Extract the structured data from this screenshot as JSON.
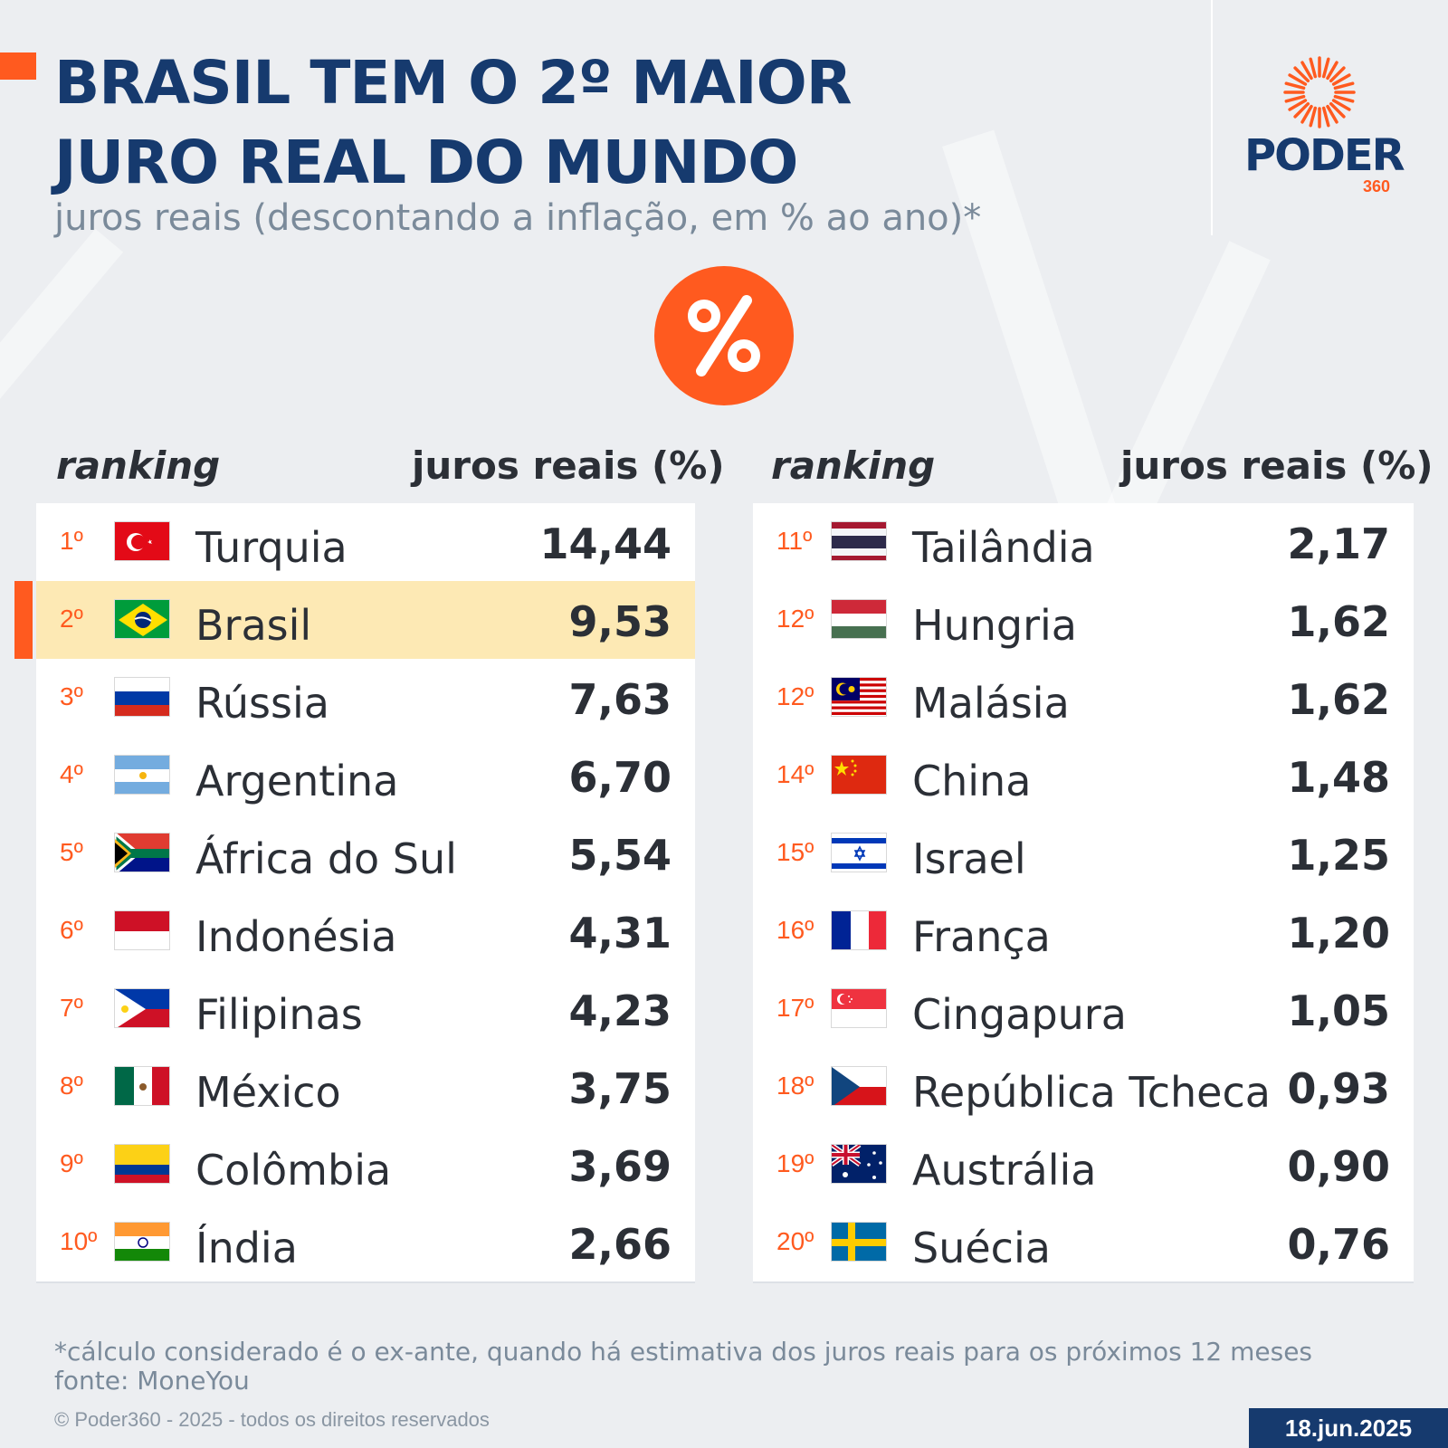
{
  "header": {
    "title_line1": "BRASIL TEM O 2º MAIOR",
    "title_line2": "JURO REAL DO MUNDO",
    "subtitle": "juros reais (descontando a inflação, em % ao ano)*"
  },
  "logo": {
    "name": "PODER",
    "number": "360"
  },
  "colors": {
    "accent": "#ff5a1f",
    "navy": "#163a6e",
    "highlight": "#fde9b4"
  },
  "columns": {
    "rank_label": "ranking",
    "value_label": "juros reais (%)"
  },
  "chart_data": {
    "type": "table",
    "title": "BRASIL TEM O 2º MAIOR JURO REAL DO MUNDO",
    "subtitle": "juros reais (descontando a inflação, em % ao ano)*",
    "columns": [
      "ranking",
      "juros reais (%)"
    ],
    "highlight": "Brasil",
    "rows": [
      {
        "rank": "1º",
        "country": "Turquia",
        "value": "14,44",
        "flag": "turkey"
      },
      {
        "rank": "2º",
        "country": "Brasil",
        "value": "9,53",
        "flag": "brazil"
      },
      {
        "rank": "3º",
        "country": "Rússia",
        "value": "7,63",
        "flag": "russia"
      },
      {
        "rank": "4º",
        "country": "Argentina",
        "value": "6,70",
        "flag": "argentina"
      },
      {
        "rank": "5º",
        "country": "África do Sul",
        "value": "5,54",
        "flag": "south-africa"
      },
      {
        "rank": "6º",
        "country": "Indonésia",
        "value": "4,31",
        "flag": "indonesia"
      },
      {
        "rank": "7º",
        "country": "Filipinas",
        "value": "4,23",
        "flag": "philippines"
      },
      {
        "rank": "8º",
        "country": "México",
        "value": "3,75",
        "flag": "mexico"
      },
      {
        "rank": "9º",
        "country": "Colômbia",
        "value": "3,69",
        "flag": "colombia"
      },
      {
        "rank": "10º",
        "country": "Índia",
        "value": "2,66",
        "flag": "india"
      },
      {
        "rank": "11º",
        "country": "Tailândia",
        "value": "2,17",
        "flag": "thailand"
      },
      {
        "rank": "12º",
        "country": "Hungria",
        "value": "1,62",
        "flag": "hungary"
      },
      {
        "rank": "12º",
        "country": "Malásia",
        "value": "1,62",
        "flag": "malaysia"
      },
      {
        "rank": "14º",
        "country": "China",
        "value": "1,48",
        "flag": "china"
      },
      {
        "rank": "15º",
        "country": "Israel",
        "value": "1,25",
        "flag": "israel"
      },
      {
        "rank": "16º",
        "country": "França",
        "value": "1,20",
        "flag": "france"
      },
      {
        "rank": "17º",
        "country": "Cingapura",
        "value": "1,05",
        "flag": "singapore"
      },
      {
        "rank": "18º",
        "country": "República Tcheca",
        "value": "0,93",
        "flag": "czech-republic"
      },
      {
        "rank": "19º",
        "country": "Austrália",
        "value": "0,90",
        "flag": "australia"
      },
      {
        "rank": "20º",
        "country": "Suécia",
        "value": "0,76",
        "flag": "sweden"
      }
    ]
  },
  "footer": {
    "note": "*cálculo considerado é o ex-ante, quando há estimativa dos juros reais para os próximos 12 meses",
    "source": "fonte: MoneYou",
    "copyright": "© Poder360 - 2025 - todos os direitos reservados",
    "date": "18.jun.2025"
  }
}
